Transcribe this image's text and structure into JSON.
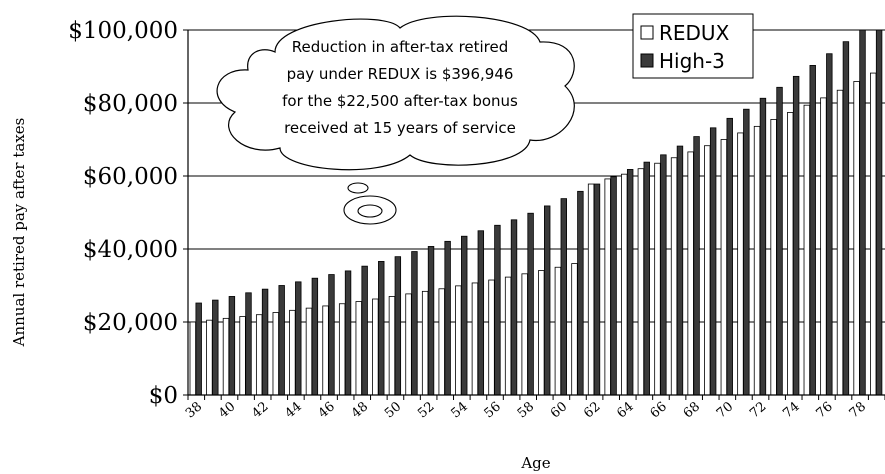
{
  "chart_data": {
    "type": "bar",
    "xlabel": "Age",
    "ylabel": "Annual retired pay after taxes",
    "ylim": [
      0,
      100000
    ],
    "y_ticks": [
      "$0",
      "$20,000",
      "$40,000",
      "$60,000",
      "$80,000",
      "$100,000"
    ],
    "grid": "horizontal",
    "legend_position": "top-right",
    "x": [
      38,
      39,
      40,
      41,
      42,
      43,
      44,
      45,
      46,
      47,
      48,
      49,
      50,
      51,
      52,
      53,
      54,
      55,
      56,
      57,
      58,
      59,
      60,
      61,
      62,
      63,
      64,
      65,
      66,
      67,
      68,
      69,
      70,
      71,
      72,
      73,
      74,
      75,
      76,
      77,
      78,
      79
    ],
    "x_tick_labels": [
      "38",
      "40",
      "42",
      "44",
      "46",
      "48",
      "50",
      "52",
      "54",
      "56",
      "58",
      "60",
      "62",
      "64",
      "66",
      "68",
      "70",
      "72",
      "74",
      "76",
      "78"
    ],
    "series": [
      {
        "name": "REDUX",
        "color": "#ffffff",
        "values": [
          20000,
          20500,
          21000,
          21500,
          22000,
          22600,
          23200,
          23800,
          24400,
          25000,
          25600,
          26300,
          27000,
          27700,
          28400,
          29100,
          29900,
          30700,
          31500,
          32300,
          33200,
          34100,
          35000,
          36000,
          57800,
          59200,
          60500,
          62000,
          63500,
          65000,
          66600,
          68300,
          70000,
          71800,
          73600,
          75500,
          77400,
          79400,
          81400,
          83500,
          85900,
          88200
        ]
      },
      {
        "name": "High-3",
        "color": "#3a3a3a",
        "values": [
          25200,
          26000,
          27000,
          28000,
          29000,
          30000,
          31000,
          32000,
          33000,
          34000,
          35300,
          36600,
          37900,
          39300,
          40700,
          42100,
          43500,
          45000,
          46500,
          48000,
          49800,
          51800,
          53800,
          55800,
          57800,
          59800,
          61800,
          63800,
          65800,
          68200,
          70800,
          73200,
          75800,
          78300,
          81300,
          84300,
          87300,
          90300,
          93500,
          96800,
          100000,
          100000
        ]
      }
    ]
  },
  "annotation": {
    "lines": [
      "Reduction in after-tax retired",
      "pay under REDUX is $396,946",
      "for the $22,500 after-tax bonus",
      "received at 15 years of service"
    ]
  }
}
